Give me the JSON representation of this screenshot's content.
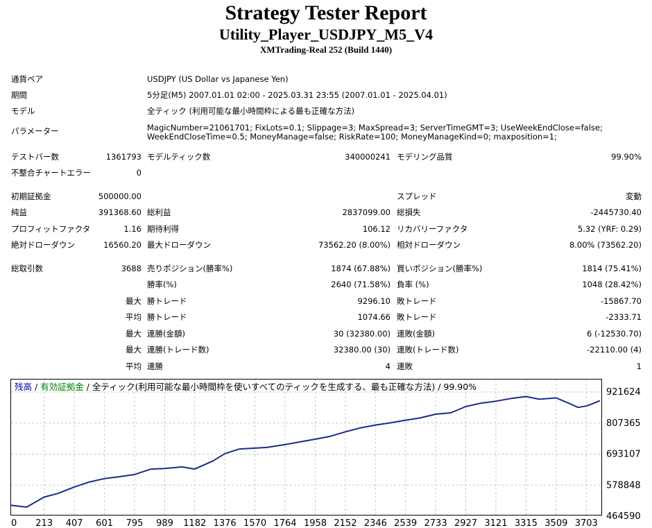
{
  "header": {
    "title": "Strategy Tester Report",
    "subtitle": "Utility_Player_USDJPY_M5_V4",
    "server": "XMTrading-Real 252 (Build 1440)"
  },
  "settings": {
    "symbol_label": "通貨ペア",
    "symbol_value": "USDJPY (US Dollar vs Japanese Yen)",
    "period_label": "期間",
    "period_value": "5分足(M5) 2007.01.01 02:00 - 2025.03.31 23:55 (2007.01.01 - 2025.04.01)",
    "model_label": "モデル",
    "model_value": "全ティック (利用可能な最小時間枠による最も正確な方法)",
    "params_label": "パラメーター",
    "params_line1": "MagicNumber=21061701; FixLots=0.1; Slippage=3; MaxSpread=3; ServerTimeGMT=3; UseWeekEndClose=false;",
    "params_line2": "WeekEndCloseTime=0.5; MoneyManage=false; RiskRate=100; MoneyManageKind=0; maxposition=1;"
  },
  "stats": {
    "bars_label": "テストバー数",
    "bars_value": "1361793",
    "ticks_label": "モデルティック数",
    "ticks_value": "340000241",
    "quality_label": "モデリング品質",
    "quality_value": "99.90%",
    "mismatch_label": "不整合チャートエラー",
    "mismatch_value": "0",
    "deposit_label": "初期証拠金",
    "deposit_value": "500000.00",
    "spread_label": "スプレッド",
    "spread_value": "変動",
    "net_label": "純益",
    "net_value": "391368.60",
    "gross_profit_label": "総利益",
    "gross_profit_value": "2837099.00",
    "gross_loss_label": "総損失",
    "gross_loss_value": "-2445730.40",
    "pf_label": "プロフィットファクタ",
    "pf_value": "1.16",
    "payoff_label": "期待利得",
    "payoff_value": "106.12",
    "recovery_label": "リカバリーファクタ",
    "recovery_value": "5.32 (YRF: 0.29)",
    "abs_dd_label": "絶対ドローダウン",
    "abs_dd_value": "16560.20",
    "max_dd_label": "最大ドローダウン",
    "max_dd_value": "73562.20 (8.00%)",
    "rel_dd_label": "相対ドローダウン",
    "rel_dd_value": "8.00% (73562.20)",
    "trades_label": "総取引数",
    "trades_value": "3688",
    "short_label": "売りポジション(勝率%)",
    "short_value": "1874 (67.88%)",
    "long_label": "買いポジション(勝率%)",
    "long_value": "1814 (75.41%)",
    "winrate_label": "勝率(%)",
    "winrate_value": "2640 (71.58%)",
    "lossrate_label": "負率 (%)",
    "lossrate_value": "1048 (28.42%)",
    "max_prefix": "最大",
    "avg_prefix": "平均",
    "largest_win_label": "勝トレード",
    "largest_win_value": "9296.10",
    "largest_loss_label": "敗トレード",
    "largest_loss_value": "-15867.70",
    "avg_win_label": "勝トレード",
    "avg_win_value": "1074.66",
    "avg_loss_label": "敗トレード",
    "avg_loss_value": "-2333.71",
    "max_consec_wins_label": "連勝(金額)",
    "max_consec_wins_value": "30 (32380.00)",
    "max_consec_losses_label": "連敗(金額)",
    "max_consec_losses_value": "6 (-12530.70)",
    "max_consec_profit_label": "連勝(トレード数)",
    "max_consec_profit_value": "32380.00 (30)",
    "max_consec_loss_label": "連敗(トレード数)",
    "max_consec_loss_value": "-22110.00 (4)",
    "avg_consec_wins_label": "連勝",
    "avg_consec_wins_value": "4",
    "avg_consec_losses_label": "連敗",
    "avg_consec_losses_value": "1"
  },
  "legend": {
    "balance": "残高",
    "sep1": " / ",
    "equity": "有効証拠金",
    "rest": " / 全ティック(利用可能な最小時間枠を使いすべてのティックを生成する、最も正確な方法) / 99.90%"
  },
  "colors": {
    "balance": "#0000aa",
    "equity": "#008000",
    "line": "#1a2a8a",
    "grid": "#c8c8c8"
  },
  "chart_data": {
    "type": "line",
    "x_ticks": [
      "0",
      "213",
      "407",
      "601",
      "795",
      "989",
      "1182",
      "1376",
      "1570",
      "1764",
      "1958",
      "2152",
      "2346",
      "2539",
      "2733",
      "2927",
      "3121",
      "3315",
      "3509",
      "3703"
    ],
    "y_ticks": [
      "921624",
      "807365",
      "693107",
      "578848",
      "464590"
    ],
    "xlim": [
      0,
      3800
    ],
    "ylim": [
      464590,
      921624
    ],
    "series": [
      {
        "name": "残高",
        "x": [
          0,
          100,
          213,
          300,
          407,
          500,
          601,
          700,
          795,
          900,
          989,
          1100,
          1182,
          1300,
          1376,
          1470,
          1570,
          1650,
          1764,
          1860,
          1958,
          2050,
          2152,
          2250,
          2346,
          2440,
          2539,
          2630,
          2733,
          2830,
          2927,
          3020,
          3121,
          3220,
          3315,
          3400,
          3509,
          3600,
          3650,
          3703,
          3750,
          3790
        ],
        "y": [
          505000,
          498000,
          535000,
          548000,
          572000,
          590000,
          603000,
          610000,
          618000,
          638000,
          640000,
          646000,
          638000,
          668000,
          695000,
          712000,
          715000,
          718000,
          728000,
          738000,
          748000,
          758000,
          775000,
          790000,
          800000,
          808000,
          818000,
          826000,
          840000,
          845000,
          868000,
          880000,
          888000,
          898000,
          905000,
          895000,
          900000,
          878000,
          865000,
          870000,
          880000,
          890000
        ]
      }
    ]
  }
}
